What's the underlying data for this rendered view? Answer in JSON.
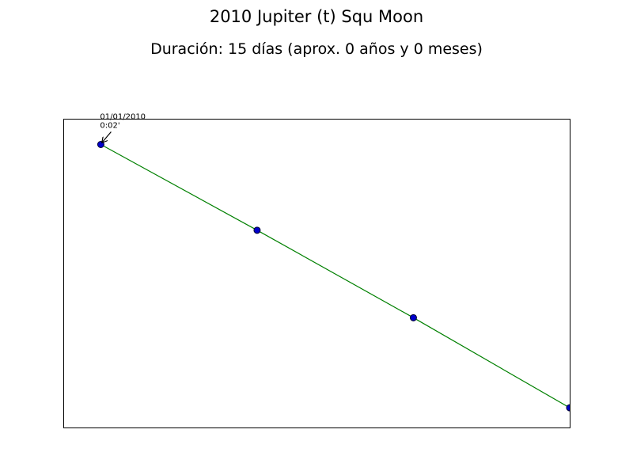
{
  "title": "2010 Jupiter (t) Squ Moon",
  "subtitle": "Duración: 15 días (aprox. 0 años y 0 meses)",
  "colors": {
    "line": "#008000",
    "marker_fill": "#0000cc",
    "marker_edge": "#000033",
    "frame": "#000000"
  },
  "chart_data": {
    "type": "line",
    "title": "2010 Jupiter (t) Squ Moon",
    "subtitle": "Duración: 15 días (aprox. 0 años y 0 meses)",
    "xlabel": "",
    "ylabel": "",
    "x_ticks_visible": false,
    "y_ticks_visible": false,
    "grid": false,
    "xlim": [
      -0.24,
      3.0
    ],
    "ylim": [
      -0.3,
      3.3
    ],
    "series": [
      {
        "x": [
          0,
          1,
          2,
          3
        ],
        "y": [
          3.0,
          2.0,
          0.98,
          -0.07
        ]
      }
    ],
    "annotations": [
      {
        "point_index": 0,
        "line1": "01/01/2010",
        "line2": "0:02'"
      }
    ]
  }
}
